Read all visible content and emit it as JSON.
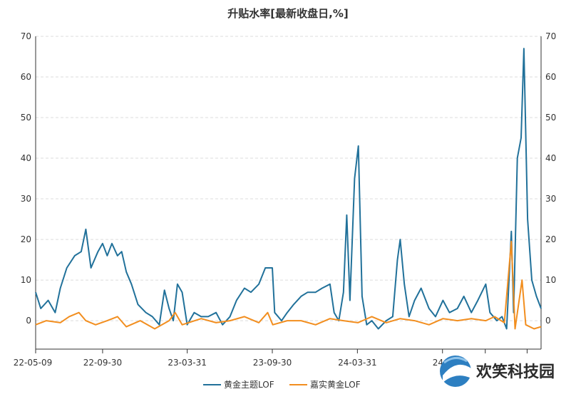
{
  "chart_data": {
    "type": "line",
    "title": "升贴水率[最新收盘日,%]",
    "xlabel": "",
    "ylabel": "",
    "ylim": [
      -7,
      70
    ],
    "y_ticks": [
      "0",
      "10",
      "20",
      "30",
      "40",
      "50",
      "60",
      "70"
    ],
    "x_ticks": [
      "22-05-09",
      "22-09-30",
      "23-03-31",
      "23-09-30",
      "24-03-31",
      "24-"
    ],
    "x_tick_dates": [
      "2022-05-09",
      "2022-09-30",
      "2023-03-31",
      "2023-09-30",
      "2024-03-31",
      "2024-09-30"
    ],
    "x_range": [
      "2022-05-09",
      "2025-04-30"
    ],
    "grid": "horizontal-dashed",
    "right_axis": true,
    "legend_position": "bottom-center",
    "colors": {
      "series1": "#21719a",
      "series2": "#f28e1f",
      "axis": "#333333",
      "grid": "#dcdcdc"
    },
    "series": [
      {
        "name": "黄金主题LOF",
        "points": [
          [
            "2022-05-09",
            7
          ],
          [
            "2022-05-20",
            3
          ],
          [
            "2022-06-05",
            5
          ],
          [
            "2022-06-20",
            2
          ],
          [
            "2022-07-01",
            8
          ],
          [
            "2022-07-15",
            13
          ],
          [
            "2022-08-01",
            16
          ],
          [
            "2022-08-15",
            17
          ],
          [
            "2022-08-25",
            22.5
          ],
          [
            "2022-09-05",
            13
          ],
          [
            "2022-09-20",
            17
          ],
          [
            "2022-09-30",
            19
          ],
          [
            "2022-10-10",
            16
          ],
          [
            "2022-10-20",
            19
          ],
          [
            "2022-11-01",
            16
          ],
          [
            "2022-11-10",
            17
          ],
          [
            "2022-11-20",
            12
          ],
          [
            "2022-12-01",
            9
          ],
          [
            "2022-12-15",
            4
          ],
          [
            "2023-01-01",
            2
          ],
          [
            "2023-01-15",
            1
          ],
          [
            "2023-01-30",
            -1
          ],
          [
            "2023-02-10",
            7.5
          ],
          [
            "2023-02-20",
            3
          ],
          [
            "2023-03-01",
            0
          ],
          [
            "2023-03-10",
            9
          ],
          [
            "2023-03-20",
            7
          ],
          [
            "2023-03-31",
            -1
          ],
          [
            "2023-04-15",
            2
          ],
          [
            "2023-04-30",
            1
          ],
          [
            "2023-05-15",
            1
          ],
          [
            "2023-06-01",
            2
          ],
          [
            "2023-06-15",
            -1
          ],
          [
            "2023-07-01",
            1
          ],
          [
            "2023-07-15",
            5
          ],
          [
            "2023-08-01",
            8
          ],
          [
            "2023-08-15",
            7
          ],
          [
            "2023-09-01",
            9
          ],
          [
            "2023-09-15",
            13
          ],
          [
            "2023-09-30",
            13
          ],
          [
            "2023-10-05",
            2
          ],
          [
            "2023-10-20",
            0
          ],
          [
            "2023-11-01",
            2
          ],
          [
            "2023-11-15",
            4
          ],
          [
            "2023-12-01",
            6
          ],
          [
            "2023-12-15",
            7
          ],
          [
            "2024-01-01",
            7
          ],
          [
            "2024-01-15",
            8
          ],
          [
            "2024-02-01",
            9
          ],
          [
            "2024-02-10",
            2
          ],
          [
            "2024-02-20",
            0
          ],
          [
            "2024-03-01",
            7
          ],
          [
            "2024-03-08",
            26
          ],
          [
            "2024-03-15",
            5
          ],
          [
            "2024-03-25",
            35
          ],
          [
            "2024-04-02",
            43
          ],
          [
            "2024-04-10",
            6
          ],
          [
            "2024-04-20",
            -1
          ],
          [
            "2024-05-01",
            0
          ],
          [
            "2024-05-15",
            -2
          ],
          [
            "2024-06-01",
            0
          ],
          [
            "2024-06-15",
            1
          ],
          [
            "2024-06-25",
            15
          ],
          [
            "2024-07-01",
            20
          ],
          [
            "2024-07-10",
            9
          ],
          [
            "2024-07-20",
            1
          ],
          [
            "2024-08-01",
            5
          ],
          [
            "2024-08-15",
            8
          ],
          [
            "2024-09-01",
            3
          ],
          [
            "2024-09-15",
            1
          ],
          [
            "2024-10-01",
            5
          ],
          [
            "2024-10-15",
            2
          ],
          [
            "2024-11-01",
            3
          ],
          [
            "2024-11-15",
            6
          ],
          [
            "2024-12-01",
            2
          ],
          [
            "2024-12-15",
            5
          ],
          [
            "2025-01-01",
            9
          ],
          [
            "2025-01-10",
            2
          ],
          [
            "2025-01-25",
            0
          ],
          [
            "2025-02-05",
            1
          ],
          [
            "2025-02-15",
            -2
          ],
          [
            "2025-02-25",
            22
          ],
          [
            "2025-03-02",
            2
          ],
          [
            "2025-03-10",
            40
          ],
          [
            "2025-03-18",
            45
          ],
          [
            "2025-03-24",
            67
          ],
          [
            "2025-04-01",
            25
          ],
          [
            "2025-04-10",
            10
          ],
          [
            "2025-04-20",
            6
          ],
          [
            "2025-04-30",
            3
          ]
        ]
      },
      {
        "name": "嘉实黄金LOF",
        "points": [
          [
            "2022-05-09",
            -1
          ],
          [
            "2022-06-01",
            0
          ],
          [
            "2022-07-01",
            -0.5
          ],
          [
            "2022-07-20",
            1
          ],
          [
            "2022-08-10",
            2
          ],
          [
            "2022-08-25",
            0
          ],
          [
            "2022-09-15",
            -1
          ],
          [
            "2022-10-10",
            0
          ],
          [
            "2022-11-01",
            1
          ],
          [
            "2022-11-20",
            -1.5
          ],
          [
            "2022-12-20",
            0
          ],
          [
            "2023-01-20",
            -2
          ],
          [
            "2023-02-20",
            0
          ],
          [
            "2023-03-05",
            2
          ],
          [
            "2023-03-20",
            -1
          ],
          [
            "2023-04-30",
            0.5
          ],
          [
            "2023-06-01",
            -0.5
          ],
          [
            "2023-07-01",
            0
          ],
          [
            "2023-08-01",
            1
          ],
          [
            "2023-09-01",
            -0.5
          ],
          [
            "2023-09-20",
            2
          ],
          [
            "2023-10-01",
            -1
          ],
          [
            "2023-11-01",
            0
          ],
          [
            "2023-12-01",
            0
          ],
          [
            "2024-01-01",
            -1
          ],
          [
            "2024-02-01",
            0.5
          ],
          [
            "2024-03-01",
            0
          ],
          [
            "2024-04-01",
            -0.5
          ],
          [
            "2024-05-01",
            1
          ],
          [
            "2024-06-01",
            -0.5
          ],
          [
            "2024-07-01",
            0.5
          ],
          [
            "2024-08-01",
            0
          ],
          [
            "2024-09-01",
            -1
          ],
          [
            "2024-10-01",
            0.5
          ],
          [
            "2024-11-01",
            0
          ],
          [
            "2024-12-01",
            0.5
          ],
          [
            "2025-01-01",
            0
          ],
          [
            "2025-01-20",
            1
          ],
          [
            "2025-02-10",
            -0.5
          ],
          [
            "2025-02-25",
            19.5
          ],
          [
            "2025-03-05",
            -2
          ],
          [
            "2025-03-20",
            10
          ],
          [
            "2025-03-28",
            -1
          ],
          [
            "2025-04-15",
            -2
          ],
          [
            "2025-04-30",
            -1.5
          ]
        ]
      }
    ]
  },
  "legend": {
    "items": [
      "黄金主题LOF",
      "嘉实黄金LOF"
    ]
  },
  "watermark": {
    "text": "欢笑科技园"
  }
}
